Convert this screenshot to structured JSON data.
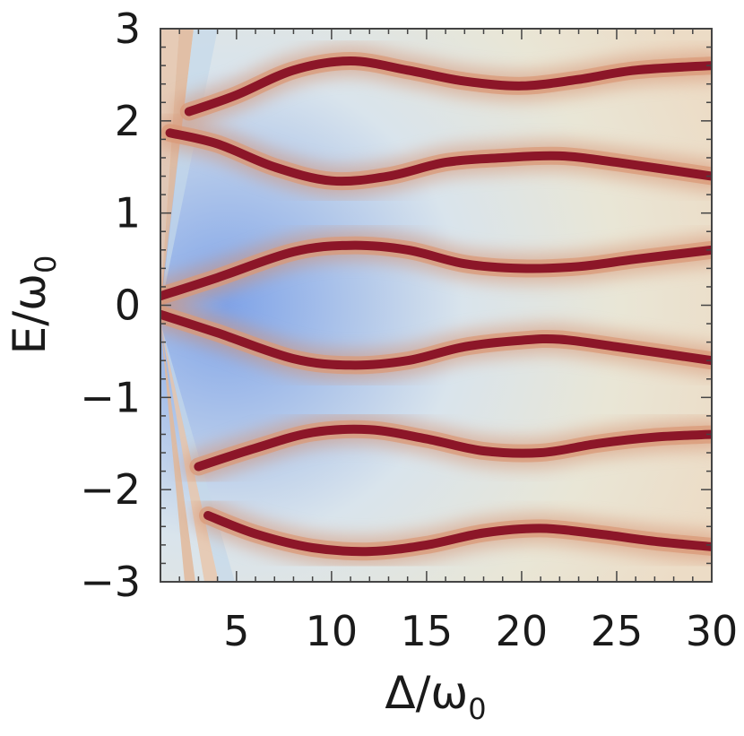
{
  "chart_data": {
    "type": "heatmap",
    "title": "",
    "xlabel": {
      "base": "Δ/ω",
      "sub": "0"
    },
    "ylabel": {
      "base": "E/ω",
      "sub": "0"
    },
    "xlim": [
      1,
      30
    ],
    "ylim": [
      -3,
      3
    ],
    "x_ticks": [
      5,
      10,
      15,
      20,
      25,
      30
    ],
    "x_tick_labels": [
      "5",
      "10",
      "15",
      "20",
      "25",
      "30"
    ],
    "y_ticks": [
      -3,
      -2,
      -1,
      0,
      1,
      2,
      3
    ],
    "y_tick_labels": [
      "−3",
      "−2",
      "−1",
      "0",
      "1",
      "2",
      "3"
    ],
    "colormap": {
      "low": "#7fa3e8",
      "mid": "#e9e6d6",
      "high": "#8c1628"
    },
    "grid": false,
    "bands": [
      {
        "name": "band-top",
        "points": [
          [
            2.5,
            2.1
          ],
          [
            5,
            2.28
          ],
          [
            8,
            2.55
          ],
          [
            11,
            2.65
          ],
          [
            14,
            2.55
          ],
          [
            17,
            2.43
          ],
          [
            20,
            2.38
          ],
          [
            23,
            2.45
          ],
          [
            26,
            2.55
          ],
          [
            30,
            2.6
          ]
        ]
      },
      {
        "name": "band-upper",
        "points": [
          [
            1.5,
            1.87
          ],
          [
            4,
            1.75
          ],
          [
            7,
            1.5
          ],
          [
            10,
            1.35
          ],
          [
            13,
            1.4
          ],
          [
            16,
            1.55
          ],
          [
            19,
            1.6
          ],
          [
            22,
            1.62
          ],
          [
            25,
            1.55
          ],
          [
            30,
            1.4
          ]
        ]
      },
      {
        "name": "band-upper-mid",
        "points": [
          [
            1,
            0.1
          ],
          [
            4,
            0.3
          ],
          [
            8,
            0.58
          ],
          [
            11,
            0.65
          ],
          [
            14,
            0.6
          ],
          [
            17,
            0.45
          ],
          [
            20,
            0.4
          ],
          [
            23,
            0.42
          ],
          [
            26,
            0.5
          ],
          [
            30,
            0.6
          ]
        ]
      },
      {
        "name": "band-lower-mid",
        "points": [
          [
            1,
            -0.1
          ],
          [
            4,
            -0.3
          ],
          [
            8,
            -0.58
          ],
          [
            11,
            -0.65
          ],
          [
            14,
            -0.6
          ],
          [
            17,
            -0.45
          ],
          [
            20,
            -0.38
          ],
          [
            22,
            -0.37
          ],
          [
            25,
            -0.45
          ],
          [
            30,
            -0.6
          ]
        ]
      },
      {
        "name": "band-lower",
        "points": [
          [
            3,
            -1.75
          ],
          [
            6,
            -1.55
          ],
          [
            9,
            -1.38
          ],
          [
            12,
            -1.35
          ],
          [
            15,
            -1.45
          ],
          [
            18,
            -1.58
          ],
          [
            21,
            -1.6
          ],
          [
            24,
            -1.5
          ],
          [
            27,
            -1.43
          ],
          [
            30,
            -1.4
          ]
        ]
      },
      {
        "name": "band-bottom",
        "points": [
          [
            3.5,
            -2.28
          ],
          [
            6,
            -2.48
          ],
          [
            9,
            -2.63
          ],
          [
            12,
            -2.67
          ],
          [
            15,
            -2.6
          ],
          [
            18,
            -2.47
          ],
          [
            21,
            -2.42
          ],
          [
            24,
            -2.48
          ],
          [
            27,
            -2.56
          ],
          [
            30,
            -2.62
          ]
        ]
      }
    ]
  }
}
